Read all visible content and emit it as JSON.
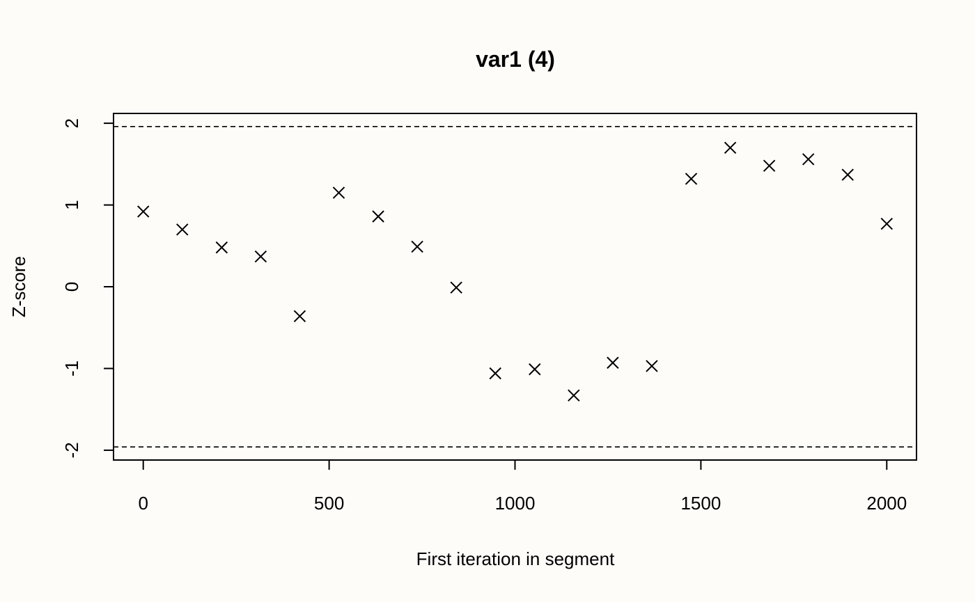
{
  "chart_data": {
    "type": "scatter",
    "title": "var1 (4)",
    "xlabel": "First iteration in segment",
    "ylabel": "Z-score",
    "x": [
      0,
      105,
      211,
      316,
      421,
      526,
      632,
      737,
      842,
      947,
      1053,
      1158,
      1263,
      1368,
      1474,
      1579,
      1684,
      1789,
      1895,
      2000
    ],
    "values": [
      0.92,
      0.7,
      0.48,
      0.37,
      -0.36,
      1.15,
      0.86,
      0.49,
      -0.01,
      -1.06,
      -1.01,
      -1.33,
      -0.93,
      -0.97,
      1.32,
      1.7,
      1.48,
      1.56,
      1.37,
      0.77
    ],
    "color": "#000000",
    "marker": "x",
    "hlines": [
      1.96,
      -1.96
    ],
    "xlim": [
      -80,
      2080
    ],
    "ylim": [
      -2.12,
      2.12
    ],
    "xticks": [
      0,
      500,
      1000,
      1500,
      2000
    ],
    "yticks": [
      -2,
      -1,
      0,
      1,
      2
    ]
  }
}
